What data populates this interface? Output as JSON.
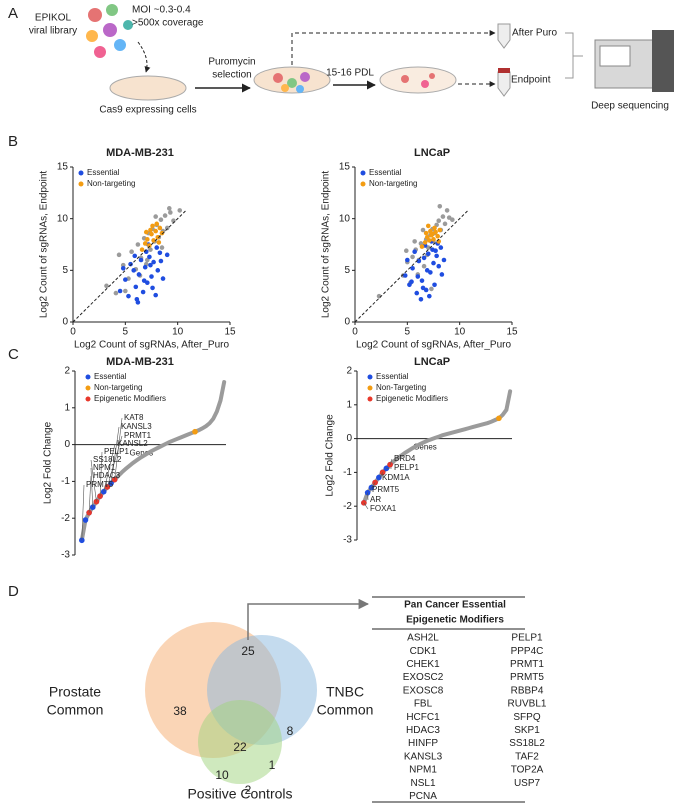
{
  "panel_labels": [
    "A",
    "B",
    "C",
    "D"
  ],
  "workflow": {
    "library": [
      "EPIKOL",
      "viral library"
    ],
    "moi": "MOI ~0.3-0.4",
    "coverage": ">500x coverage",
    "cells": "Cas9 expressing cells",
    "selection": [
      "Puromycin",
      "selection"
    ],
    "pdl": "15-16 PDL",
    "after_puro": "After Puro",
    "endpoint": "Endpoint",
    "sequencing": "Deep sequencing"
  },
  "chart_data": [
    {
      "type": "scatter",
      "title": "MDA-MB-231",
      "xlabel": "Log2 Count of sgRNAs,  After_Puro",
      "ylabel": "Log2 Count of sgRNAs, Endpoint",
      "xlim": [
        0,
        15
      ],
      "ylim": [
        0,
        15
      ],
      "xticks": [
        0,
        5,
        10,
        15
      ],
      "yticks": [
        0,
        5,
        10,
        15
      ],
      "diagonal": true,
      "legend": "upper left",
      "series": [
        {
          "color": "#9b9b9b",
          "x": [
            3.2,
            4.1,
            4.8,
            5.3,
            5.6,
            6.0,
            6.2,
            6.5,
            6.8,
            7.0,
            7.2,
            7.4,
            7.6,
            7.8,
            8.0,
            8.2,
            8.4,
            8.6,
            8.8,
            9.0,
            9.3,
            9.6,
            5.0,
            6.4,
            7.1,
            7.9,
            8.5,
            9.2,
            4.4,
            10.2
          ],
          "values": [
            3.5,
            2.8,
            5.5,
            4.2,
            6.8,
            5.1,
            7.5,
            6.2,
            8.1,
            5.6,
            8.6,
            7.0,
            9.0,
            7.8,
            9.4,
            8.2,
            9.9,
            8.8,
            10.3,
            9.1,
            10.6,
            9.8,
            3.0,
            4.5,
            6.0,
            10.2,
            7.2,
            11.0,
            6.5,
            10.8
          ]
        },
        {
          "name": "Essential",
          "color": "#1f4de0",
          "x": [
            4.5,
            5.0,
            5.3,
            5.8,
            6.0,
            6.3,
            6.5,
            6.7,
            6.9,
            7.1,
            7.3,
            7.5,
            7.7,
            7.9,
            8.1,
            8.3,
            8.6,
            5.5,
            6.2,
            7.0,
            7.6,
            8.0,
            6.8,
            7.4,
            4.8,
            5.9,
            8.4,
            9.0,
            6.1,
            7.2
          ],
          "values": [
            3.0,
            4.1,
            2.5,
            5.0,
            3.4,
            4.6,
            6.0,
            2.9,
            5.3,
            3.8,
            6.3,
            4.4,
            5.8,
            2.6,
            5.0,
            6.7,
            4.2,
            5.6,
            1.9,
            6.8,
            3.3,
            7.2,
            4.0,
            5.5,
            5.2,
            6.4,
            5.9,
            6.5,
            2.2,
            7.5
          ]
        },
        {
          "name": "Non-targeting",
          "color": "#f39c12",
          "x": [
            6.6,
            6.9,
            7.1,
            7.3,
            7.5,
            7.7,
            7.9,
            8.1,
            8.3,
            8.5,
            7.0,
            7.6,
            8.2,
            7.4,
            8.0
          ],
          "values": [
            7.0,
            7.6,
            8.0,
            7.4,
            8.5,
            7.9,
            8.8,
            8.2,
            9.1,
            8.6,
            8.7,
            9.3,
            7.7,
            8.9,
            9.5
          ]
        }
      ]
    },
    {
      "type": "scatter",
      "title": "LNCaP",
      "xlabel": "Log2 Count of sgRNAs,  After_Puro",
      "ylabel": "Log2 Count of sgRNAs, Endpoint",
      "xlim": [
        0,
        15
      ],
      "ylim": [
        0,
        15
      ],
      "xticks": [
        0,
        5,
        10,
        15
      ],
      "yticks": [
        0,
        5,
        10,
        15
      ],
      "diagonal": true,
      "legend": "upper left",
      "series": [
        {
          "color": "#9b9b9b",
          "x": [
            2.3,
            4.6,
            5.0,
            5.5,
            5.8,
            6.1,
            6.3,
            6.6,
            6.8,
            7.0,
            7.2,
            7.4,
            7.6,
            7.8,
            8.0,
            8.2,
            8.4,
            8.6,
            8.8,
            9.0,
            5.3,
            6.0,
            6.9,
            7.5,
            8.1,
            7.3,
            6.5,
            5.7,
            4.9,
            9.3
          ],
          "values": [
            2.5,
            4.5,
            5.8,
            6.3,
            7.0,
            6.0,
            7.6,
            5.4,
            8.0,
            7.2,
            8.4,
            9.0,
            8.6,
            9.4,
            9.8,
            8.9,
            10.2,
            9.5,
            10.8,
            10.1,
            3.8,
            4.6,
            6.5,
            7.8,
            11.2,
            3.2,
            8.9,
            7.8,
            6.9,
            9.9
          ]
        },
        {
          "name": "Essential",
          "color": "#1f4de0",
          "x": [
            4.8,
            5.2,
            5.5,
            5.9,
            6.1,
            6.4,
            6.6,
            6.8,
            7.0,
            7.2,
            7.4,
            7.6,
            7.8,
            8.0,
            8.2,
            8.5,
            5.7,
            6.3,
            6.9,
            7.5,
            7.9,
            6.0,
            7.1,
            7.7,
            5.0,
            6.7,
            8.3,
            6.5,
            7.3,
            5.4
          ],
          "values": [
            4.5,
            3.6,
            5.2,
            2.8,
            5.9,
            4.0,
            6.2,
            3.1,
            6.6,
            4.8,
            7.0,
            3.6,
            6.4,
            5.4,
            7.2,
            6.0,
            6.8,
            2.2,
            5.0,
            5.7,
            7.6,
            4.4,
            2.5,
            6.9,
            6.0,
            7.4,
            4.6,
            3.3,
            7.8,
            3.9
          ]
        },
        {
          "name": "Non-targeting",
          "color": "#f39c12",
          "x": [
            6.4,
            6.7,
            6.9,
            7.1,
            7.3,
            7.5,
            7.7,
            7.9,
            8.1,
            6.8,
            7.2,
            7.6,
            8.0,
            7.4,
            7.0
          ],
          "values": [
            7.3,
            7.7,
            8.2,
            7.9,
            8.4,
            8.0,
            8.7,
            8.3,
            8.9,
            8.6,
            8.8,
            9.1,
            7.8,
            8.5,
            9.3
          ]
        }
      ]
    },
    {
      "type": "rank",
      "title": "MDA-MB-231",
      "xlabel": "Genes",
      "ylabel": "Log2 Fold Change",
      "ylim": [
        -3,
        2
      ],
      "yticks": [
        -3,
        -2,
        -1,
        0,
        1,
        2
      ],
      "legend": "upper left",
      "categories": [
        null,
        null,
        null,
        null,
        null,
        null,
        null,
        null,
        null,
        null,
        null,
        null,
        null,
        null,
        null,
        null,
        null,
        null,
        null,
        null,
        null,
        null,
        null,
        null,
        null,
        null,
        null,
        null,
        null,
        null,
        null,
        null,
        null,
        null,
        null,
        null,
        null,
        null,
        null,
        null
      ],
      "series": [
        {
          "color": "#9b9b9b",
          "values": [
            -2.6,
            -2.05,
            -1.85,
            -1.7,
            -1.55,
            -1.4,
            -1.28,
            -1.15,
            -1.05,
            -0.95,
            -0.85,
            -0.75,
            -0.66,
            -0.58,
            -0.5,
            -0.43,
            -0.36,
            -0.3,
            -0.24,
            -0.18,
            -0.13,
            -0.08,
            -0.03,
            0.02,
            0.07,
            0.11,
            0.15,
            0.19,
            0.23,
            0.27,
            0.31,
            0.35,
            0.39,
            0.44,
            0.5,
            0.58,
            0.7,
            0.9,
            1.2,
            1.7
          ]
        },
        {
          "name": "Essential",
          "color": "#1f4de0",
          "values": [
            -2.6,
            -2.05,
            -1.85,
            -1.7,
            -1.55,
            -1.4,
            -1.28,
            -1.15,
            -1.05,
            -0.95,
            null,
            null,
            null,
            null,
            null,
            null,
            null,
            null,
            null,
            null,
            null,
            null,
            null,
            null,
            null,
            null,
            null,
            null,
            null,
            null,
            null,
            null,
            null,
            null,
            null,
            null,
            null,
            null,
            null,
            null
          ]
        },
        {
          "name": "Non-targeting",
          "color": "#f39c12",
          "values": [
            null,
            null,
            null,
            null,
            null,
            null,
            null,
            null,
            null,
            null,
            null,
            null,
            null,
            null,
            null,
            null,
            null,
            null,
            null,
            null,
            null,
            null,
            null,
            null,
            null,
            null,
            null,
            null,
            null,
            null,
            null,
            0.35,
            null,
            null,
            null,
            null,
            null,
            null,
            null,
            null
          ]
        },
        {
          "name": "Epigenetic Modifiers",
          "color": "#e8382b",
          "values": [
            null,
            null,
            -1.85,
            null,
            -1.55,
            -1.4,
            null,
            -1.15,
            null,
            -0.95,
            null,
            null,
            null,
            null,
            null,
            null,
            null,
            null,
            null,
            null,
            null,
            null,
            null,
            null,
            null,
            null,
            null,
            null,
            null,
            null,
            null,
            null,
            null,
            null,
            null,
            null,
            null,
            null,
            null,
            null
          ]
        }
      ],
      "annotations": [
        "KAT8",
        "KANSL3",
        "PRMT1",
        "KANSL2",
        "PELP1",
        "SS18L2",
        "NPM1",
        "HDAC3",
        "PRMT5"
      ]
    },
    {
      "type": "rank",
      "title": "LNCaP",
      "xlabel": "Genes",
      "ylabel": "Log2 Fold Change",
      "ylim": [
        -3,
        2
      ],
      "yticks": [
        -3,
        -2,
        -1,
        0,
        1,
        2
      ],
      "legend": "upper left",
      "categories": [
        null,
        null,
        null,
        null,
        null,
        null,
        null,
        null,
        null,
        null,
        null,
        null,
        null,
        null,
        null,
        null,
        null,
        null,
        null,
        null,
        null,
        null,
        null,
        null,
        null,
        null,
        null,
        null,
        null,
        null,
        null,
        null,
        null,
        null,
        null,
        null,
        null,
        null,
        null,
        null
      ],
      "series": [
        {
          "color": "#9b9b9b",
          "values": [
            -1.9,
            -1.6,
            -1.45,
            -1.3,
            -1.15,
            -1.0,
            -0.88,
            -0.77,
            -0.67,
            -0.58,
            -0.5,
            -0.42,
            -0.35,
            -0.28,
            -0.22,
            -0.16,
            -0.11,
            -0.06,
            -0.02,
            0.02,
            0.06,
            0.1,
            0.13,
            0.16,
            0.19,
            0.22,
            0.25,
            0.28,
            0.31,
            0.34,
            0.37,
            0.4,
            0.43,
            0.46,
            0.5,
            0.55,
            0.6,
            0.7,
            0.85,
            1.4
          ]
        },
        {
          "name": "Essential",
          "color": "#1f4de0",
          "values": [
            -1.9,
            -1.6,
            -1.45,
            -1.3,
            -1.15,
            -1.0,
            -0.88,
            -0.77,
            null,
            null,
            null,
            null,
            null,
            null,
            null,
            null,
            null,
            null,
            null,
            null,
            null,
            null,
            null,
            null,
            null,
            null,
            null,
            null,
            null,
            null,
            null,
            null,
            null,
            null,
            null,
            null,
            null,
            null,
            null,
            null
          ]
        },
        {
          "name": "Non-Targeting",
          "color": "#f39c12",
          "values": [
            null,
            null,
            null,
            null,
            null,
            null,
            null,
            null,
            null,
            null,
            null,
            null,
            null,
            null,
            null,
            null,
            null,
            null,
            null,
            null,
            null,
            null,
            null,
            null,
            null,
            null,
            null,
            null,
            null,
            null,
            null,
            null,
            null,
            null,
            null,
            null,
            0.6,
            null,
            null,
            null
          ]
        },
        {
          "name": "Epigenetic Modifiers",
          "color": "#e8382b",
          "values": [
            -1.9,
            null,
            null,
            -1.3,
            null,
            -1.0,
            null,
            -0.77,
            null,
            null,
            null,
            null,
            null,
            null,
            null,
            null,
            null,
            null,
            null,
            null,
            null,
            null,
            null,
            null,
            null,
            null,
            null,
            null,
            null,
            null,
            null,
            null,
            null,
            null,
            null,
            null,
            null,
            null,
            null,
            null
          ]
        }
      ],
      "annotations": [
        "BRD4",
        "PELP1",
        "KDM1A",
        "PRMT5",
        "AR",
        "FOXA1"
      ]
    }
  ],
  "venn": {
    "sets": [
      [
        "Prostate",
        "Common"
      ],
      [
        "TNBC",
        "Common"
      ],
      [
        "Positive Controls"
      ]
    ],
    "counts": {
      "prostate_only": 38,
      "prostate_tnbc": 25,
      "tnbc_only": 8,
      "all": 22,
      "prostate_controls": 10,
      "tnbc_controls": 1,
      "controls_only": 2
    }
  },
  "table": {
    "title": [
      "Pan Cancer Essential",
      "Epigenetic Modifiers"
    ],
    "columns": [
      [
        "ASH2L",
        "CDK1",
        "CHEK1",
        "EXOSC2",
        "EXOSC8",
        "FBL",
        "HCFC1",
        "HDAC3",
        "HINFP",
        "KANSL3",
        "NPM1",
        "NSL1",
        "PCNA"
      ],
      [
        "PELP1",
        "PPP4C",
        "PRMT1",
        "PRMT5",
        "RBBP4",
        "RUVBL1",
        "SFPQ",
        "SKP1",
        "SS18L2",
        "TAF2",
        "TOP2A",
        "USP7"
      ]
    ]
  }
}
